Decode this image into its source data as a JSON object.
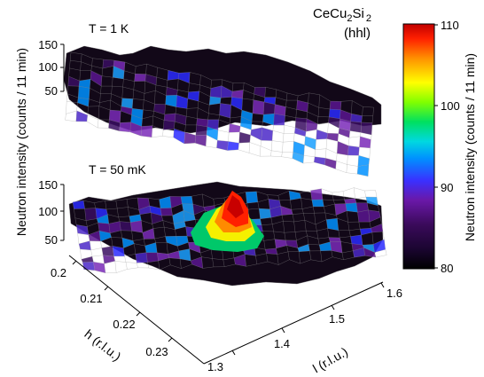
{
  "chart_data": {
    "type": "surface",
    "ylabel": "Neutron intensity (counts / 11 min)",
    "compound": {
      "base": "CeCu",
      "sub1": "2",
      "mid": "Si",
      "sub2": "2"
    },
    "direction": "(hhl)",
    "panels": [
      {
        "label": "T = 1 K",
        "zticks": [
          "50",
          "100",
          "150"
        ],
        "zlim": [
          50,
          150
        ],
        "peak": null
      },
      {
        "label": "T = 50 mK",
        "zticks": [
          "50",
          "100",
          "150"
        ],
        "zlim": [
          50,
          150
        ],
        "peak": {
          "h": 0.21,
          "l": 1.47,
          "intensity": 110
        }
      }
    ],
    "h_axis": {
      "label": "h (r.l.u.)",
      "ticks": [
        "0.2",
        "0.21",
        "0.22",
        "0.23"
      ],
      "range": [
        0.2,
        0.23
      ]
    },
    "l_axis": {
      "label": "l (r.l.u.)",
      "ticks": [
        "1.3",
        "1.4",
        "1.5",
        "1.6"
      ],
      "range": [
        1.3,
        1.6
      ]
    },
    "colorbar": {
      "label": "Neutron intensity (counts / 11 min)",
      "ticks": [
        "80",
        "90",
        "100",
        "110"
      ],
      "range": [
        80,
        110
      ],
      "colormap": [
        "#000000",
        "#3a0a5a",
        "#7a1fb0",
        "#2a2aff",
        "#00c8ff",
        "#00e070",
        "#80ff00",
        "#ffff00",
        "#ff9000",
        "#ff2000",
        "#c00000"
      ]
    }
  }
}
